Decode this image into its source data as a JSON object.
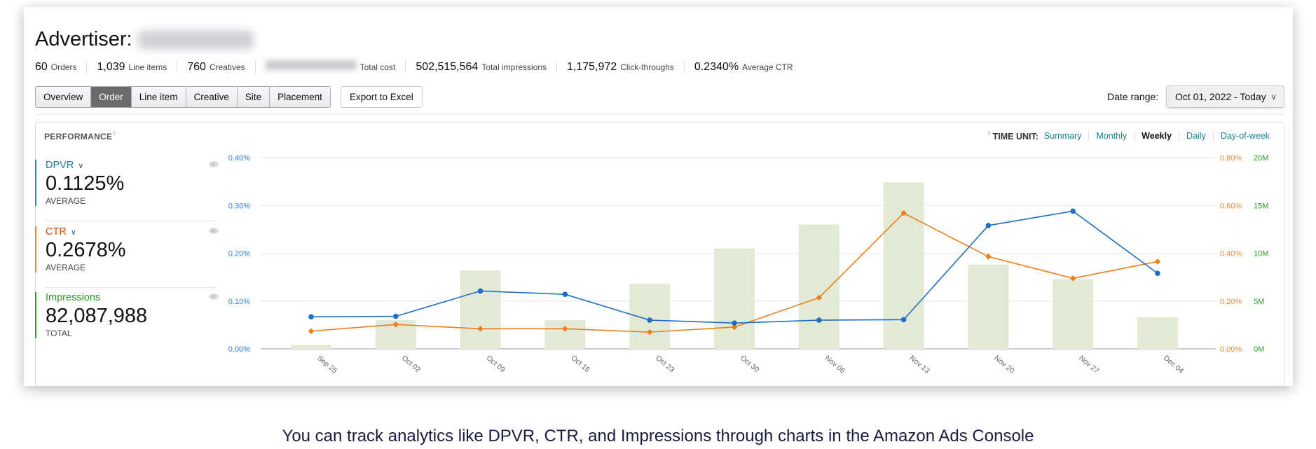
{
  "header": {
    "title": "Advertiser:",
    "stats": [
      {
        "value": "60",
        "label": "Orders"
      },
      {
        "value": "1,039",
        "label": "Line items"
      },
      {
        "value": "760",
        "label": "Creatives"
      },
      {
        "value": "",
        "label": "Total cost"
      },
      {
        "value": "502,515,564",
        "label": "Total impressions"
      },
      {
        "value": "1,175,972",
        "label": "Click-throughs"
      },
      {
        "value": "0.2340%",
        "label": "Average CTR"
      }
    ]
  },
  "tabs": [
    {
      "label": "Overview"
    },
    {
      "label": "Order",
      "active": true
    },
    {
      "label": "Line item"
    },
    {
      "label": "Creative"
    },
    {
      "label": "Site"
    },
    {
      "label": "Placement"
    }
  ],
  "export_label": "Export to Excel",
  "date_range": {
    "label": "Date range:",
    "value": "Oct 01, 2022 - Today"
  },
  "performance": {
    "title": "PERFORMANCE",
    "help": "?",
    "time_unit": {
      "help": "?",
      "label": "TIME UNIT:",
      "options": [
        "Summary",
        "Monthly",
        "Weekly",
        "Daily",
        "Day-of-week"
      ],
      "selected": "Weekly"
    },
    "metrics": [
      {
        "name": "DPVR",
        "value": "0.1125%",
        "sub": "AVERAGE",
        "color": "#2f80d0"
      },
      {
        "name": "CTR",
        "value": "0.2678%",
        "sub": "AVERAGE",
        "color": "#e8872b"
      },
      {
        "name": "Impressions",
        "value": "82,087,988",
        "sub": "TOTAL",
        "color": "#2ea02e"
      }
    ]
  },
  "chart_data": {
    "type": "bar+line",
    "categories": [
      "Sep 25",
      "Oct 02",
      "Oct 09",
      "Oct 16",
      "Oct 23",
      "Oct 30",
      "Nov 06",
      "Nov 13",
      "Nov 20",
      "Nov 27",
      "Dec 04"
    ],
    "series": [
      {
        "name": "Impressions",
        "type": "bar",
        "axis": "right2",
        "color": "#e2ead6",
        "values": [
          0.4,
          3.0,
          8.2,
          3.0,
          6.8,
          10.5,
          13.0,
          17.4,
          8.8,
          7.3,
          3.3
        ],
        "unit": "M"
      },
      {
        "name": "DPVR",
        "type": "line",
        "axis": "left",
        "color": "#1f6fc4",
        "values": [
          0.067,
          0.068,
          0.121,
          0.114,
          0.06,
          0.054,
          0.06,
          0.061,
          0.258,
          0.288,
          0.158
        ],
        "unit": "%"
      },
      {
        "name": "CTR",
        "type": "line",
        "axis": "right1",
        "color": "#ef7d1a",
        "values": [
          0.074,
          0.102,
          0.084,
          0.084,
          0.07,
          0.091,
          0.214,
          0.568,
          0.386,
          0.295,
          0.365
        ],
        "unit": "%"
      }
    ],
    "left_axis": {
      "ticks": [
        "0.00%",
        "0.10%",
        "0.20%",
        "0.30%",
        "0.40%"
      ],
      "range": [
        0,
        0.4
      ],
      "color": "#2f7fd6"
    },
    "right_axis_1": {
      "ticks": [
        "0.00%",
        "0.20%",
        "0.40%",
        "0.60%",
        "0.80%"
      ],
      "range": [
        0,
        0.8
      ],
      "color": "#e8872b"
    },
    "right_axis_2": {
      "ticks": [
        "0M",
        "5M",
        "10M",
        "15M",
        "20M"
      ],
      "range": [
        0,
        20
      ],
      "color": "#2a9a2a"
    },
    "grid": true
  },
  "caption": "You can track analytics like DPVR, CTR, and Impressions through charts in the Amazon Ads Console"
}
